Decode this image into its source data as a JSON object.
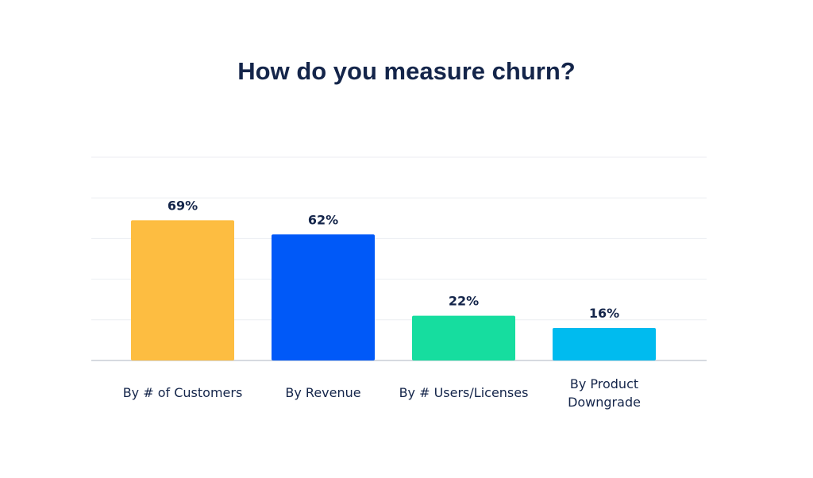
{
  "chart_data": {
    "type": "bar",
    "title": "How do you measure churn?",
    "xlabel": "",
    "ylabel": "",
    "categories": [
      "By # of Customers",
      "By Revenue",
      "By # Users/Licenses",
      "By Product Downgrade"
    ],
    "category_lines": [
      [
        "By # of Customers"
      ],
      [
        "By Revenue"
      ],
      [
        "By # Users/Licenses"
      ],
      [
        "By Product",
        "Downgrade"
      ]
    ],
    "values": [
      69,
      62,
      22,
      16
    ],
    "value_labels": [
      "69%",
      "62%",
      "22%",
      "16%"
    ],
    "colors": [
      "#fdbd41",
      "#0059f8",
      "#16dd9f",
      "#00bbef"
    ],
    "ylim": [
      0,
      100
    ],
    "grid": true,
    "gridlines": [
      0,
      20,
      40,
      60,
      80,
      100
    ],
    "legend": "none"
  }
}
